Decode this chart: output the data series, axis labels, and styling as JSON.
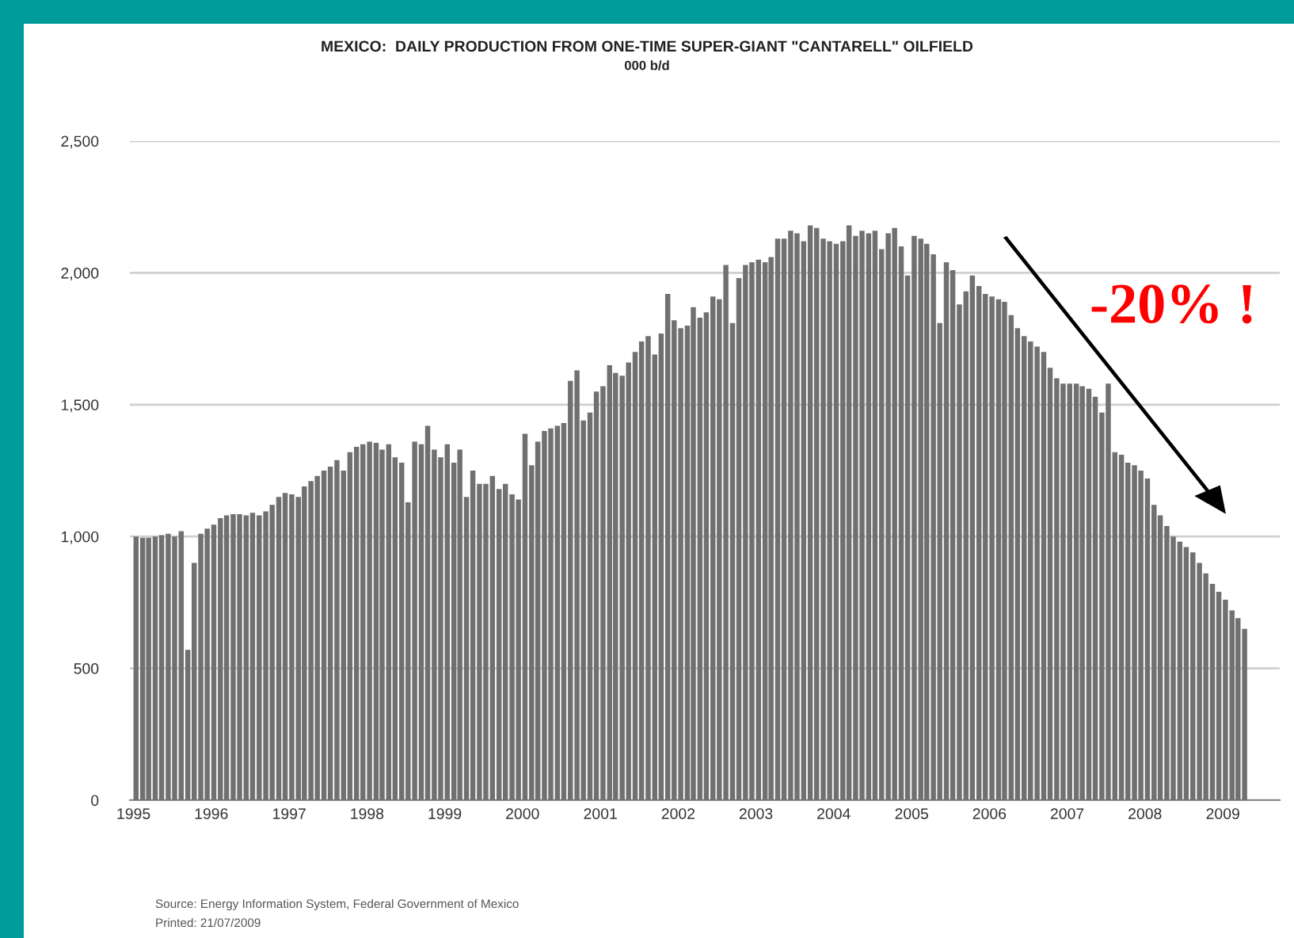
{
  "chart_data": {
    "type": "bar",
    "title": "MEXICO:  DAILY PRODUCTION FROM ONE-TIME SUPER-GIANT \"CANTARELL\" OILFIELD",
    "subtitle": "000 b/d",
    "x": [
      "1995-01",
      "1995-02",
      "1995-03",
      "1995-04",
      "1995-05",
      "1995-06",
      "1995-07",
      "1995-08",
      "1995-09",
      "1995-10",
      "1995-11",
      "1995-12",
      "1996-01",
      "1996-02",
      "1996-03",
      "1996-04",
      "1996-05",
      "1996-06",
      "1996-07",
      "1996-08",
      "1996-09",
      "1996-10",
      "1996-11",
      "1996-12",
      "1997-01",
      "1997-02",
      "1997-03",
      "1997-04",
      "1997-05",
      "1997-06",
      "1997-07",
      "1997-08",
      "1997-09",
      "1997-10",
      "1997-11",
      "1997-12",
      "1998-01",
      "1998-02",
      "1998-03",
      "1998-04",
      "1998-05",
      "1998-06",
      "1998-07",
      "1998-08",
      "1998-09",
      "1998-10",
      "1998-11",
      "1998-12",
      "1999-01",
      "1999-02",
      "1999-03",
      "1999-04",
      "1999-05",
      "1999-06",
      "1999-07",
      "1999-08",
      "1999-09",
      "1999-10",
      "1999-11",
      "1999-12",
      "2000-01",
      "2000-02",
      "2000-03",
      "2000-04",
      "2000-05",
      "2000-06",
      "2000-07",
      "2000-08",
      "2000-09",
      "2000-10",
      "2000-11",
      "2000-12",
      "2001-01",
      "2001-02",
      "2001-03",
      "2001-04",
      "2001-05",
      "2001-06",
      "2001-07",
      "2001-08",
      "2001-09",
      "2001-10",
      "2001-11",
      "2001-12",
      "2002-01",
      "2002-02",
      "2002-03",
      "2002-04",
      "2002-05",
      "2002-06",
      "2002-07",
      "2002-08",
      "2002-09",
      "2002-10",
      "2002-11",
      "2002-12",
      "2003-01",
      "2003-02",
      "2003-03",
      "2003-04",
      "2003-05",
      "2003-06",
      "2003-07",
      "2003-08",
      "2003-09",
      "2003-10",
      "2003-11",
      "2003-12",
      "2004-01",
      "2004-02",
      "2004-03",
      "2004-04",
      "2004-05",
      "2004-06",
      "2004-07",
      "2004-08",
      "2004-09",
      "2004-10",
      "2004-11",
      "2004-12",
      "2005-01",
      "2005-02",
      "2005-03",
      "2005-04",
      "2005-05",
      "2005-06",
      "2005-07",
      "2005-08",
      "2005-09",
      "2005-10",
      "2005-11",
      "2005-12",
      "2006-01",
      "2006-02",
      "2006-03",
      "2006-04",
      "2006-05",
      "2006-06",
      "2006-07",
      "2006-08",
      "2006-09",
      "2006-10",
      "2006-11",
      "2006-12",
      "2007-01",
      "2007-02",
      "2007-03",
      "2007-04",
      "2007-05",
      "2007-06",
      "2007-07",
      "2007-08",
      "2007-09",
      "2007-10",
      "2007-11",
      "2007-12",
      "2008-01",
      "2008-02",
      "2008-03",
      "2008-04",
      "2008-05",
      "2008-06",
      "2008-07",
      "2008-08",
      "2008-09",
      "2008-10",
      "2008-11",
      "2008-12",
      "2009-01",
      "2009-02",
      "2009-03",
      "2009-04"
    ],
    "values": [
      1000,
      995,
      995,
      1000,
      1005,
      1010,
      1000,
      1020,
      570,
      900,
      1010,
      1030,
      1045,
      1070,
      1080,
      1085,
      1085,
      1080,
      1090,
      1080,
      1095,
      1120,
      1150,
      1165,
      1160,
      1150,
      1190,
      1210,
      1230,
      1250,
      1265,
      1290,
      1250,
      1320,
      1340,
      1350,
      1360,
      1355,
      1330,
      1350,
      1300,
      1280,
      1130,
      1360,
      1350,
      1420,
      1330,
      1300,
      1350,
      1280,
      1330,
      1150,
      1250,
      1200,
      1200,
      1230,
      1180,
      1200,
      1160,
      1140,
      1390,
      1270,
      1360,
      1400,
      1410,
      1420,
      1430,
      1590,
      1630,
      1440,
      1470,
      1550,
      1570,
      1650,
      1620,
      1610,
      1660,
      1700,
      1740,
      1760,
      1690,
      1770,
      1920,
      1820,
      1790,
      1800,
      1870,
      1830,
      1850,
      1910,
      1900,
      2030,
      1810,
      1980,
      2030,
      2040,
      2050,
      2040,
      2060,
      2130,
      2130,
      2160,
      2150,
      2120,
      2180,
      2170,
      2130,
      2120,
      2110,
      2120,
      2180,
      2140,
      2160,
      2150,
      2160,
      2090,
      2150,
      2170,
      2100,
      1990,
      2140,
      2130,
      2110,
      2070,
      1810,
      2040,
      2010,
      1880,
      1930,
      1990,
      1950,
      1920,
      1910,
      1900,
      1890,
      1840,
      1790,
      1760,
      1740,
      1720,
      1700,
      1640,
      1600,
      1580,
      1580,
      1580,
      1570,
      1560,
      1530,
      1470,
      1580,
      1320,
      1310,
      1280,
      1270,
      1250,
      1220,
      1120,
      1080,
      1040,
      1000,
      980,
      960,
      940,
      900,
      860,
      820,
      790,
      760,
      720,
      690,
      650
    ],
    "color": "#707070",
    "xlim": [
      "1994-12-15",
      "2009-09-25"
    ],
    "xticks": [
      {
        "value": "1995-01",
        "label": "1995"
      },
      {
        "value": "1996-01",
        "label": "1996"
      },
      {
        "value": "1997-01",
        "label": "1997"
      },
      {
        "value": "1998-01",
        "label": "1998"
      },
      {
        "value": "1999-01",
        "label": "1999"
      },
      {
        "value": "2000-01",
        "label": "2000"
      },
      {
        "value": "2001-01",
        "label": "2001"
      },
      {
        "value": "2002-01",
        "label": "2002"
      },
      {
        "value": "2003-01",
        "label": "2003"
      },
      {
        "value": "2004-01",
        "label": "2004"
      },
      {
        "value": "2005-01",
        "label": "2005"
      },
      {
        "value": "2006-01",
        "label": "2006"
      },
      {
        "value": "2007-01",
        "label": "2007"
      },
      {
        "value": "2008-01",
        "label": "2008"
      },
      {
        "value": "2009-01",
        "label": "2009"
      }
    ],
    "ylim": [
      0,
      2500
    ],
    "yticks": [
      0,
      500,
      {
        "value": 1000,
        "label": "1,000"
      },
      {
        "value": 1500,
        "label": "1,500"
      },
      {
        "value": 2000,
        "label": "2,000"
      },
      {
        "value": 2500,
        "label": "2,500"
      }
    ],
    "grid": "y",
    "annotations": [
      "-20% !",
      "Source: Energy Information System, Federal Government of Mexico",
      "Printed: 21/07/2009"
    ]
  }
}
